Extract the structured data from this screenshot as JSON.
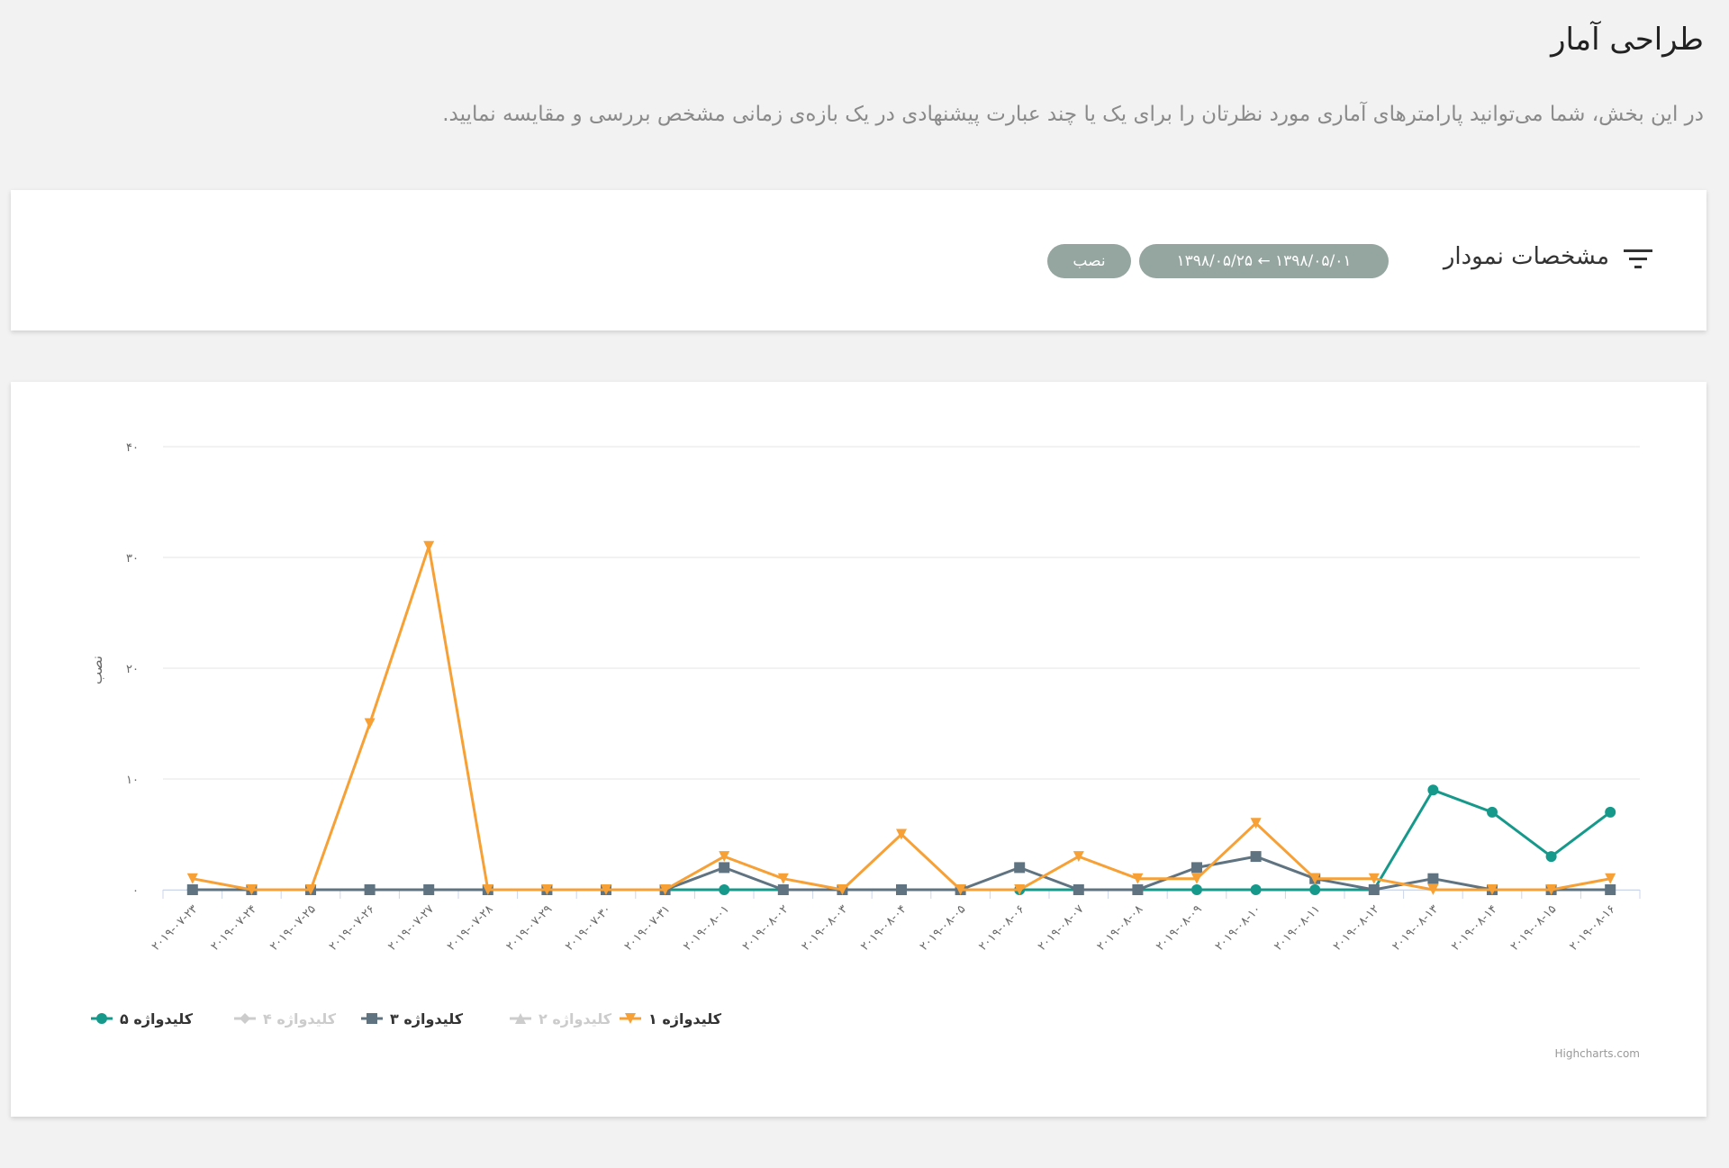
{
  "header": {
    "title": "طراحی آمار",
    "description": "در این بخش، شما می‌توانید پارامترهای آماری مورد نظرتان را برای یک یا چند عبارت پیشنهادی در یک بازه‌ی زمانی مشخص بررسی و مقایسه نمایید."
  },
  "filter": {
    "label": "مشخصات نمودار",
    "chips": [
      "۱۳۹۸/۰۵/۰۱ ← ۱۳۹۸/۰۵/۲۵",
      "نصب"
    ]
  },
  "chart_data": {
    "type": "line",
    "y_label": "نصب",
    "credit": "Highcharts.com",
    "categories": [
      "۲۰۱۹-۰۷-۲۳",
      "۲۰۱۹-۰۷-۲۴",
      "۲۰۱۹-۰۷-۲۵",
      "۲۰۱۹-۰۷-۲۶",
      "۲۰۱۹-۰۷-۲۷",
      "۲۰۱۹-۰۷-۲۸",
      "۲۰۱۹-۰۷-۲۹",
      "۲۰۱۹-۰۷-۳۰",
      "۲۰۱۹-۰۷-۳۱",
      "۲۰۱۹-۰۸-۰۱",
      "۲۰۱۹-۰۸-۰۲",
      "۲۰۱۹-۰۸-۰۳",
      "۲۰۱۹-۰۸-۰۴",
      "۲۰۱۹-۰۸-۰۵",
      "۲۰۱۹-۰۸-۰۶",
      "۲۰۱۹-۰۸-۰۷",
      "۲۰۱۹-۰۸-۰۸",
      "۲۰۱۹-۰۸-۰۹",
      "۲۰۱۹-۰۸-۱۰",
      "۲۰۱۹-۰۸-۱۱",
      "۲۰۱۹-۰۸-۱۲",
      "۲۰۱۹-۰۸-۱۳",
      "۲۰۱۹-۰۸-۱۴",
      "۲۰۱۹-۰۸-۱۵",
      "۲۰۱۹-۰۸-۱۶"
    ],
    "series": [
      {
        "name": "کلیدواژه ۵",
        "color": "#16998b",
        "marker": "circle",
        "visible": true,
        "values": [
          0,
          0,
          0,
          0,
          0,
          0,
          0,
          0,
          0,
          0,
          0,
          0,
          0,
          0,
          0,
          0,
          0,
          0,
          0,
          0,
          0,
          9,
          7,
          3,
          7
        ]
      },
      {
        "name": "کلیدواژه ۴",
        "color": "#cccccc",
        "marker": "diamond",
        "visible": false
      },
      {
        "name": "کلیدواژه ۳",
        "color": "#5f7380",
        "marker": "square",
        "visible": true,
        "values": [
          0,
          0,
          0,
          0,
          0,
          0,
          0,
          0,
          0,
          2,
          0,
          0,
          0,
          0,
          2,
          0,
          0,
          2,
          3,
          1,
          0,
          1,
          0,
          0,
          0
        ]
      },
      {
        "name": "کلیدواژه ۲",
        "color": "#cccccc",
        "marker": "triangle",
        "visible": false
      },
      {
        "name": "کلیدواژه ۱",
        "color": "#f7a035",
        "marker": "triangle-down",
        "visible": true,
        "values": [
          1,
          0,
          0,
          15,
          31,
          0,
          0,
          0,
          0,
          3,
          1,
          0,
          5,
          0,
          0,
          3,
          1,
          1,
          6,
          1,
          1,
          0,
          0,
          0,
          1
        ]
      }
    ],
    "ylim": [
      0,
      40
    ],
    "yticks": [
      {
        "value": 0,
        "label": "۰"
      },
      {
        "value": 10,
        "label": "۱۰"
      },
      {
        "value": 20,
        "label": "۲۰"
      },
      {
        "value": 30,
        "label": "۳۰"
      },
      {
        "value": 40,
        "label": "۴۰"
      }
    ],
    "grid": true
  }
}
